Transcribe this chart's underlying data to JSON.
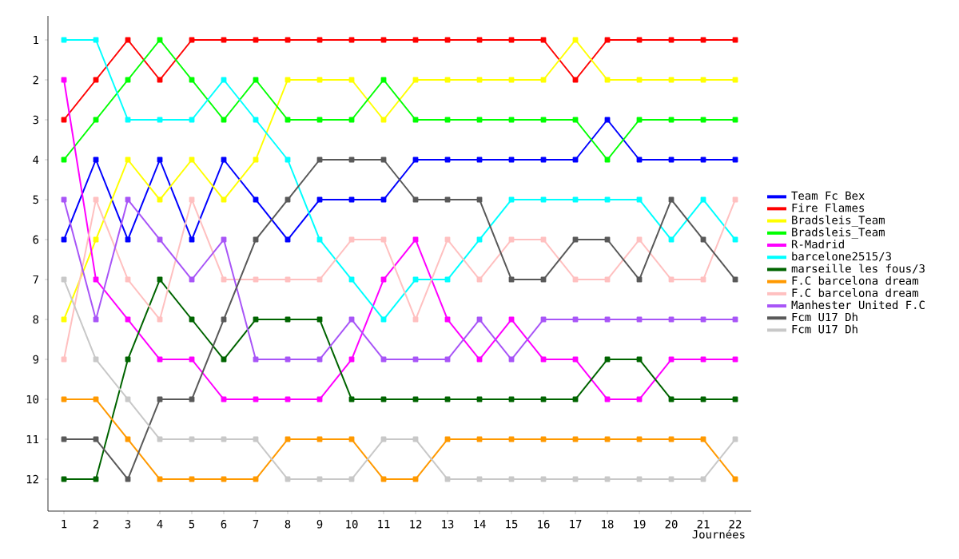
{
  "chart_data": {
    "type": "line",
    "xlabel": "Journées",
    "x": [
      1,
      2,
      3,
      4,
      5,
      6,
      7,
      8,
      9,
      10,
      11,
      12,
      13,
      14,
      15,
      16,
      17,
      18,
      19,
      20,
      21,
      22
    ],
    "xlim": [
      0.5,
      22.5
    ],
    "xticks": [
      1,
      2,
      3,
      4,
      5,
      6,
      7,
      8,
      9,
      10,
      11,
      12,
      13,
      14,
      15,
      16,
      17,
      18,
      19,
      20,
      21,
      22
    ],
    "ylim": [
      12.8,
      0.4
    ],
    "yticks": [
      1,
      2,
      3,
      4,
      5,
      6,
      7,
      8,
      9,
      10,
      11,
      12
    ],
    "legend": "right",
    "marker": "square",
    "grid": false,
    "series": [
      {
        "name": "Team Fc Bex",
        "color": "#0000ff",
        "values": [
          6,
          4,
          6,
          4,
          6,
          4,
          5,
          6,
          5,
          5,
          5,
          4,
          4,
          4,
          4,
          4,
          4,
          3,
          4,
          4,
          4,
          4
        ]
      },
      {
        "name": "Fire Flames",
        "color": "#ff0000",
        "values": [
          3,
          2,
          1,
          2,
          1,
          1,
          1,
          1,
          1,
          1,
          1,
          1,
          1,
          1,
          1,
          1,
          2,
          1,
          1,
          1,
          1,
          1
        ]
      },
      {
        "name": "Bradsleis_Team",
        "color": "#ffff00",
        "values": [
          8,
          6,
          4,
          5,
          4,
          5,
          4,
          2,
          2,
          2,
          3,
          2,
          2,
          2,
          2,
          2,
          1,
          2,
          2,
          2,
          2,
          2
        ]
      },
      {
        "name": "Bradsleis_Team",
        "color": "#00ff00",
        "values": [
          4,
          3,
          2,
          1,
          2,
          3,
          2,
          3,
          3,
          3,
          2,
          3,
          3,
          3,
          3,
          3,
          3,
          4,
          3,
          3,
          3,
          3
        ]
      },
      {
        "name": "R-Madrid",
        "color": "#ff00ff",
        "values": [
          2,
          7,
          8,
          9,
          9,
          10,
          10,
          10,
          10,
          9,
          7,
          6,
          8,
          9,
          8,
          9,
          9,
          10,
          10,
          9,
          9,
          9
        ]
      },
      {
        "name": "barcelone2515/3",
        "color": "#00ffff",
        "values": [
          1,
          1,
          3,
          3,
          3,
          2,
          3,
          4,
          6,
          7,
          8,
          7,
          7,
          6,
          5,
          5,
          5,
          5,
          5,
          6,
          5,
          6
        ]
      },
      {
        "name": "marseille les fous/3",
        "color": "#006400",
        "values": [
          12,
          12,
          9,
          7,
          8,
          9,
          8,
          8,
          8,
          10,
          10,
          10,
          10,
          10,
          10,
          10,
          10,
          9,
          9,
          10,
          10,
          10
        ]
      },
      {
        "name": "F.C barcelona dream",
        "color": "#ff9900",
        "values": [
          10,
          10,
          11,
          12,
          12,
          12,
          12,
          11,
          11,
          11,
          12,
          12,
          11,
          11,
          11,
          11,
          11,
          11,
          11,
          11,
          11,
          12
        ]
      },
      {
        "name": "F.C barcelona dream",
        "color": "#ffc0c0",
        "values": [
          9,
          5,
          7,
          8,
          5,
          7,
          7,
          7,
          7,
          6,
          6,
          8,
          6,
          7,
          6,
          6,
          7,
          7,
          6,
          7,
          7,
          5
        ]
      },
      {
        "name": "Manhester United F.C",
        "color": "#a855f7",
        "values": [
          5,
          8,
          5,
          6,
          7,
          6,
          9,
          9,
          9,
          8,
          9,
          9,
          9,
          8,
          9,
          8,
          8,
          8,
          8,
          8,
          8,
          8
        ]
      },
      {
        "name": "Fcm U17 Dh",
        "color": "#595959",
        "values": [
          11,
          11,
          12,
          10,
          10,
          8,
          6,
          5,
          4,
          4,
          4,
          5,
          5,
          5,
          7,
          7,
          6,
          6,
          7,
          5,
          6,
          7
        ]
      },
      {
        "name": "Fcm U17 Dh",
        "color": "#c8c8c8",
        "values": [
          7,
          9,
          10,
          11,
          11,
          11,
          11,
          12,
          12,
          12,
          11,
          11,
          12,
          12,
          12,
          12,
          12,
          12,
          12,
          12,
          12,
          11
        ]
      }
    ]
  }
}
